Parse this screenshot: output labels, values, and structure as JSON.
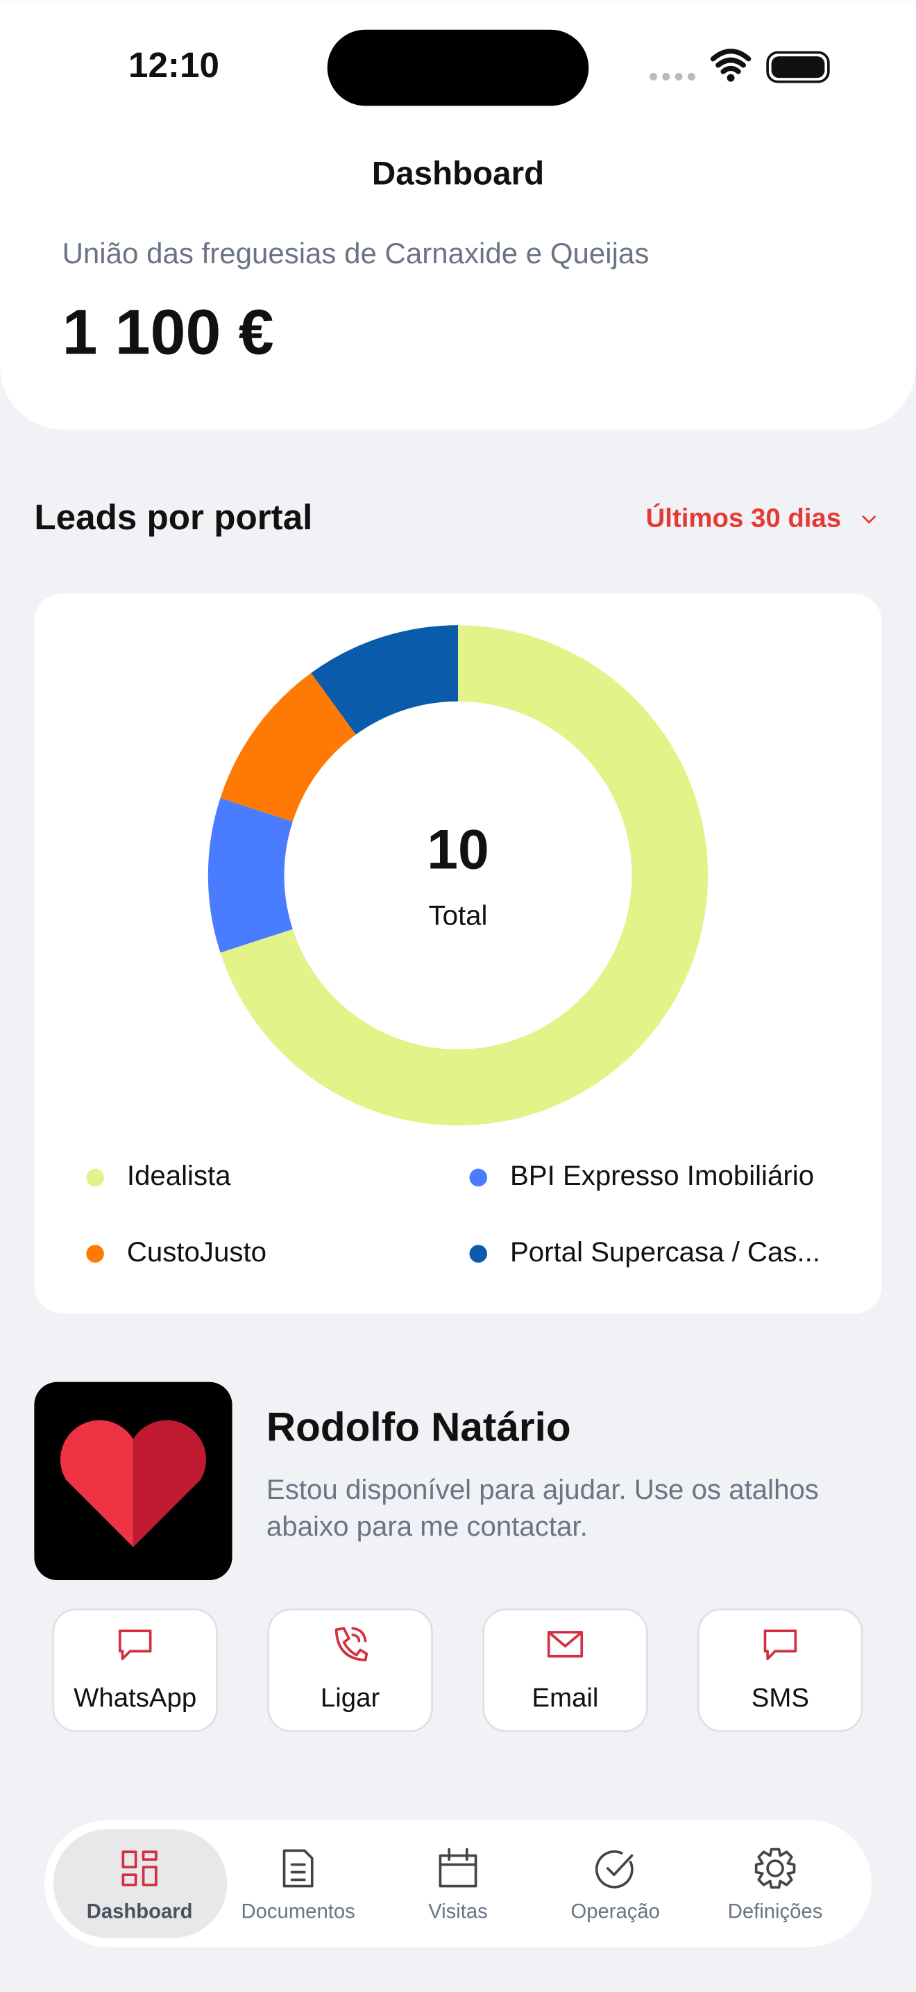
{
  "status_bar": {
    "time": "12:10"
  },
  "header": {
    "title": "Dashboard",
    "subtitle": "União das freguesias de Carnaxide e Queijas",
    "amount": "1 100 €"
  },
  "leads": {
    "title": "Leads por portal",
    "period": "Últimos 30 dias"
  },
  "chart_data": {
    "type": "donut",
    "categories": [
      "Idealista",
      "BPI Expresso Imobiliário",
      "CustoJusto",
      "Portal Supercasa / Cas..."
    ],
    "values": [
      7,
      1,
      1,
      1
    ],
    "colors": [
      "#e2f38a",
      "#4a7cff",
      "#ff7a05",
      "#0a5cab"
    ],
    "total": 10,
    "total_label": "Total"
  },
  "profile": {
    "name": "Rodolfo Natário",
    "description": "Estou disponível para ajudar. Use os atalhos abaixo para me contactar."
  },
  "actions": [
    "WhatsApp",
    "Ligar",
    "Email",
    "SMS"
  ],
  "nav": {
    "items": [
      "Dashboard",
      "Documentos",
      "Visitas",
      "Operação",
      "Definições"
    ],
    "active": 0
  }
}
